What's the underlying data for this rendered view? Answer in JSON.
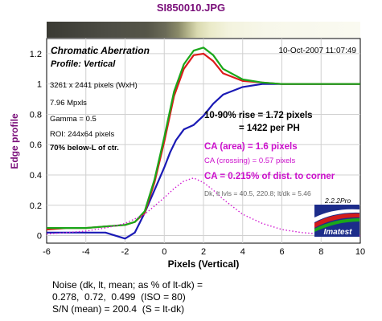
{
  "window": {
    "file_title": "SI850010.JPG"
  },
  "chart_data": {
    "type": "line",
    "title": "Chromatic Aberration",
    "subtitle": "Profile: Vertical",
    "date": "10-Oct-2007 11:07:49",
    "xlabel": "Pixels (Vertical)",
    "ylabel": "Edge profile",
    "xlim": [
      -6,
      10
    ],
    "ylim": [
      -0.05,
      1.3
    ],
    "xticks": [
      "-6",
      "-4",
      "-2",
      "0",
      "2",
      "4",
      "6",
      "8",
      "10"
    ],
    "yticks": [
      "0",
      "0.2",
      "0.4",
      "0.6",
      "0.8",
      "1",
      "1.2"
    ],
    "grid": true,
    "series": [
      {
        "color": "#1a1ab5",
        "x": [
          -6,
          -5,
          -4,
          -3,
          -2.5,
          -2,
          -1.5,
          -1,
          -0.5,
          0,
          0.3,
          0.6,
          1,
          1.5,
          2,
          2.5,
          3,
          4,
          5,
          6,
          8,
          10
        ],
        "y": [
          0.02,
          0.02,
          0.02,
          0.02,
          0.0,
          -0.02,
          0.02,
          0.15,
          0.3,
          0.45,
          0.55,
          0.63,
          0.7,
          0.73,
          0.79,
          0.87,
          0.93,
          0.98,
          1.0,
          1.0,
          1.0,
          1.0
        ]
      },
      {
        "color": "#dd1b1b",
        "x": [
          -6,
          -5,
          -4,
          -3,
          -2,
          -1.5,
          -1,
          -0.5,
          0,
          0.5,
          1,
          1.5,
          2,
          2.5,
          3,
          4,
          5,
          6,
          8,
          10
        ],
        "y": [
          0.04,
          0.05,
          0.05,
          0.06,
          0.07,
          0.09,
          0.15,
          0.35,
          0.62,
          0.92,
          1.1,
          1.19,
          1.2,
          1.15,
          1.07,
          1.02,
          1.01,
          1.0,
          1.0,
          1.0
        ]
      },
      {
        "color": "#1aa71a",
        "x": [
          -6,
          -5,
          -4,
          -3,
          -2,
          -1.5,
          -1,
          -0.5,
          0,
          0.5,
          1,
          1.5,
          2,
          2.5,
          3,
          4,
          5,
          6,
          8,
          10
        ],
        "y": [
          0.05,
          0.05,
          0.05,
          0.06,
          0.07,
          0.09,
          0.16,
          0.37,
          0.65,
          0.95,
          1.13,
          1.22,
          1.24,
          1.19,
          1.1,
          1.03,
          1.01,
          1.0,
          1.0,
          1.0
        ]
      },
      {
        "color": "#d21bd2",
        "dotted": true,
        "x": [
          -6,
          -5,
          -4,
          -3,
          -2,
          -1,
          0,
          0.5,
          1,
          1.5,
          2,
          2.5,
          3,
          4,
          5,
          6,
          7,
          8,
          9,
          10
        ],
        "y": [
          0.01,
          0.02,
          0.03,
          0.05,
          0.08,
          0.14,
          0.25,
          0.31,
          0.36,
          0.38,
          0.35,
          0.3,
          0.24,
          0.14,
          0.08,
          0.04,
          0.02,
          0.01,
          0.01,
          0.0
        ]
      }
    ]
  },
  "info": {
    "pixels": "3261 x 2441 pixels (WxH)",
    "mpxls": "7.96 Mpxls",
    "gamma": "Gamma = 0.5",
    "roi": "ROI: 244x64 pixels",
    "location": "70% below-L of ctr."
  },
  "results": {
    "rise": "10-90% rise = 1.72 pixels",
    "per_ph": "= 1422 per PH",
    "ca_area": "CA (area) = 1.6 pixels",
    "ca_crossing": "CA (crossing) = 0.57 pixels",
    "ca_dist": "CA = 0.215% of dist. to corner",
    "levels": "Dk, lt lvls = 40.5, 220.8;  lt/dk = 5.46",
    "version": "2.2.2",
    "edition": "Pro"
  },
  "logo": {
    "text": "Imatest"
  },
  "noise": {
    "line1": "Noise (dk, lt, mean; as % of lt-dk) =",
    "line2": "0.278,  0.72,  0.499  (ISO = 80)",
    "line3": "S/N (mean) = 200.4  (S = lt-dk)"
  },
  "colors": {
    "title": "#7a0f7a",
    "results_text": "#000000",
    "ca_text": "#cc10cc"
  }
}
